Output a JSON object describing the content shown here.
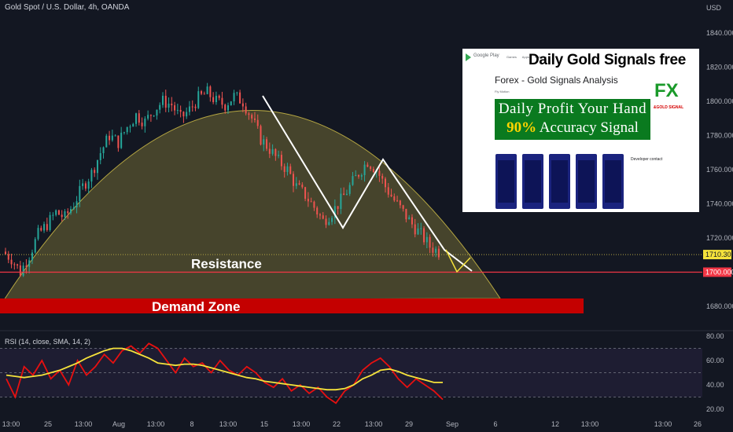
{
  "symbol_title": "Gold Spot / U.S. Dollar, 4h, OANDA",
  "currency": "USD",
  "price_axis": [
    "1840.000",
    "1820.000",
    "1800.000",
    "1780.000",
    "1760.000",
    "1740.000",
    "1720.000",
    "1680.000"
  ],
  "price_tags": {
    "last": "1710.305",
    "resistance": "1700.000"
  },
  "rsi_axis": [
    "80.00",
    "60.00",
    "40.00",
    "20.00"
  ],
  "rsi_title": "RSI (14, close, SMA, 14, 2)",
  "time_axis": [
    "13:00",
    "25",
    "13:00",
    "Aug",
    "13:00",
    "8",
    "13:00",
    "15",
    "13:00",
    "22",
    "13:00",
    "29",
    "Sep",
    "6",
    "12",
    "13:00",
    "13:00",
    "26"
  ],
  "annotations": {
    "resistance": "Resistance",
    "demand_zone": "Demand Zone"
  },
  "colors": {
    "background": "#131722",
    "up_candle": "#26a69a",
    "down_candle": "#ef5350",
    "resistance_line": "#f23645",
    "demand_zone": "#c40000",
    "arc": "#b5a642",
    "rsi_line": "#e81010",
    "rsi_ma": "#f5e23b"
  },
  "ad": {
    "headline": "Daily Gold Signals free",
    "store_name": "Google Play",
    "store_tabs": [
      "Games",
      "Apps",
      "Children"
    ],
    "app_title": "Forex - Gold Signals Analysis",
    "developer": "Fly Motion",
    "banner_line1": "Daily Profit Your Hand",
    "banner_pct": "90%",
    "banner_line2": " Accuracy Signal",
    "logo_text": "FX",
    "logo_sub": "&GOLD SIGNAL",
    "developer_contact": "Developer contact"
  },
  "chart_data": {
    "type": "candlestick",
    "title": "Gold Spot / U.S. Dollar, 4h, OANDA",
    "ylim": [
      1670,
      1850
    ],
    "key_levels": {
      "resistance": 1700.0,
      "last_price": 1710.305,
      "demand_zone": [
        1677,
        1686
      ]
    },
    "swing_points": [
      {
        "label": "top",
        "x": "Aug 13",
        "y": 1803
      },
      {
        "label": "low",
        "x": "Aug 22",
        "y": 1727
      },
      {
        "label": "lower_high",
        "x": "Aug 26",
        "y": 1767
      },
      {
        "label": "projection",
        "x": "Sep 1",
        "y": 1699
      }
    ],
    "price_path": [
      1712,
      1708,
      1700,
      1710,
      1722,
      1728,
      1735,
      1732,
      1740,
      1750,
      1758,
      1770,
      1780,
      1776,
      1785,
      1792,
      1788,
      1795,
      1800,
      1798,
      1790,
      1795,
      1802,
      1805,
      1800,
      1798,
      1803,
      1800,
      1790,
      1778,
      1772,
      1765,
      1760,
      1750,
      1745,
      1738,
      1730,
      1735,
      1742,
      1750,
      1758,
      1765,
      1760,
      1750,
      1742,
      1735,
      1728,
      1722,
      1715,
      1712
    ],
    "rsi": {
      "title": "RSI (14, close, SMA, 14, 2)",
      "ylim": [
        20,
        80
      ],
      "bands": [
        70,
        50,
        30
      ],
      "values": [
        45,
        30,
        55,
        48,
        60,
        45,
        52,
        40,
        60,
        48,
        55,
        65,
        58,
        68,
        72,
        66,
        74,
        70,
        60,
        50,
        62,
        55,
        58,
        50,
        60,
        52,
        48,
        55,
        50,
        42,
        38,
        45,
        35,
        40,
        33,
        38,
        30,
        25,
        35,
        40,
        52,
        58,
        62,
        55,
        45,
        38,
        45,
        40,
        35,
        28
      ],
      "ma_values": [
        48,
        47,
        46,
        47,
        48,
        50,
        52,
        55,
        58,
        62,
        65,
        68,
        70,
        70,
        68,
        65,
        62,
        58,
        57,
        56,
        57,
        57,
        56,
        54,
        52,
        50,
        48,
        46,
        45,
        43,
        42,
        41,
        40,
        39,
        38,
        37,
        36,
        36,
        37,
        40,
        45,
        48,
        52,
        53,
        51,
        48,
        46,
        44,
        42,
        42
      ]
    }
  }
}
